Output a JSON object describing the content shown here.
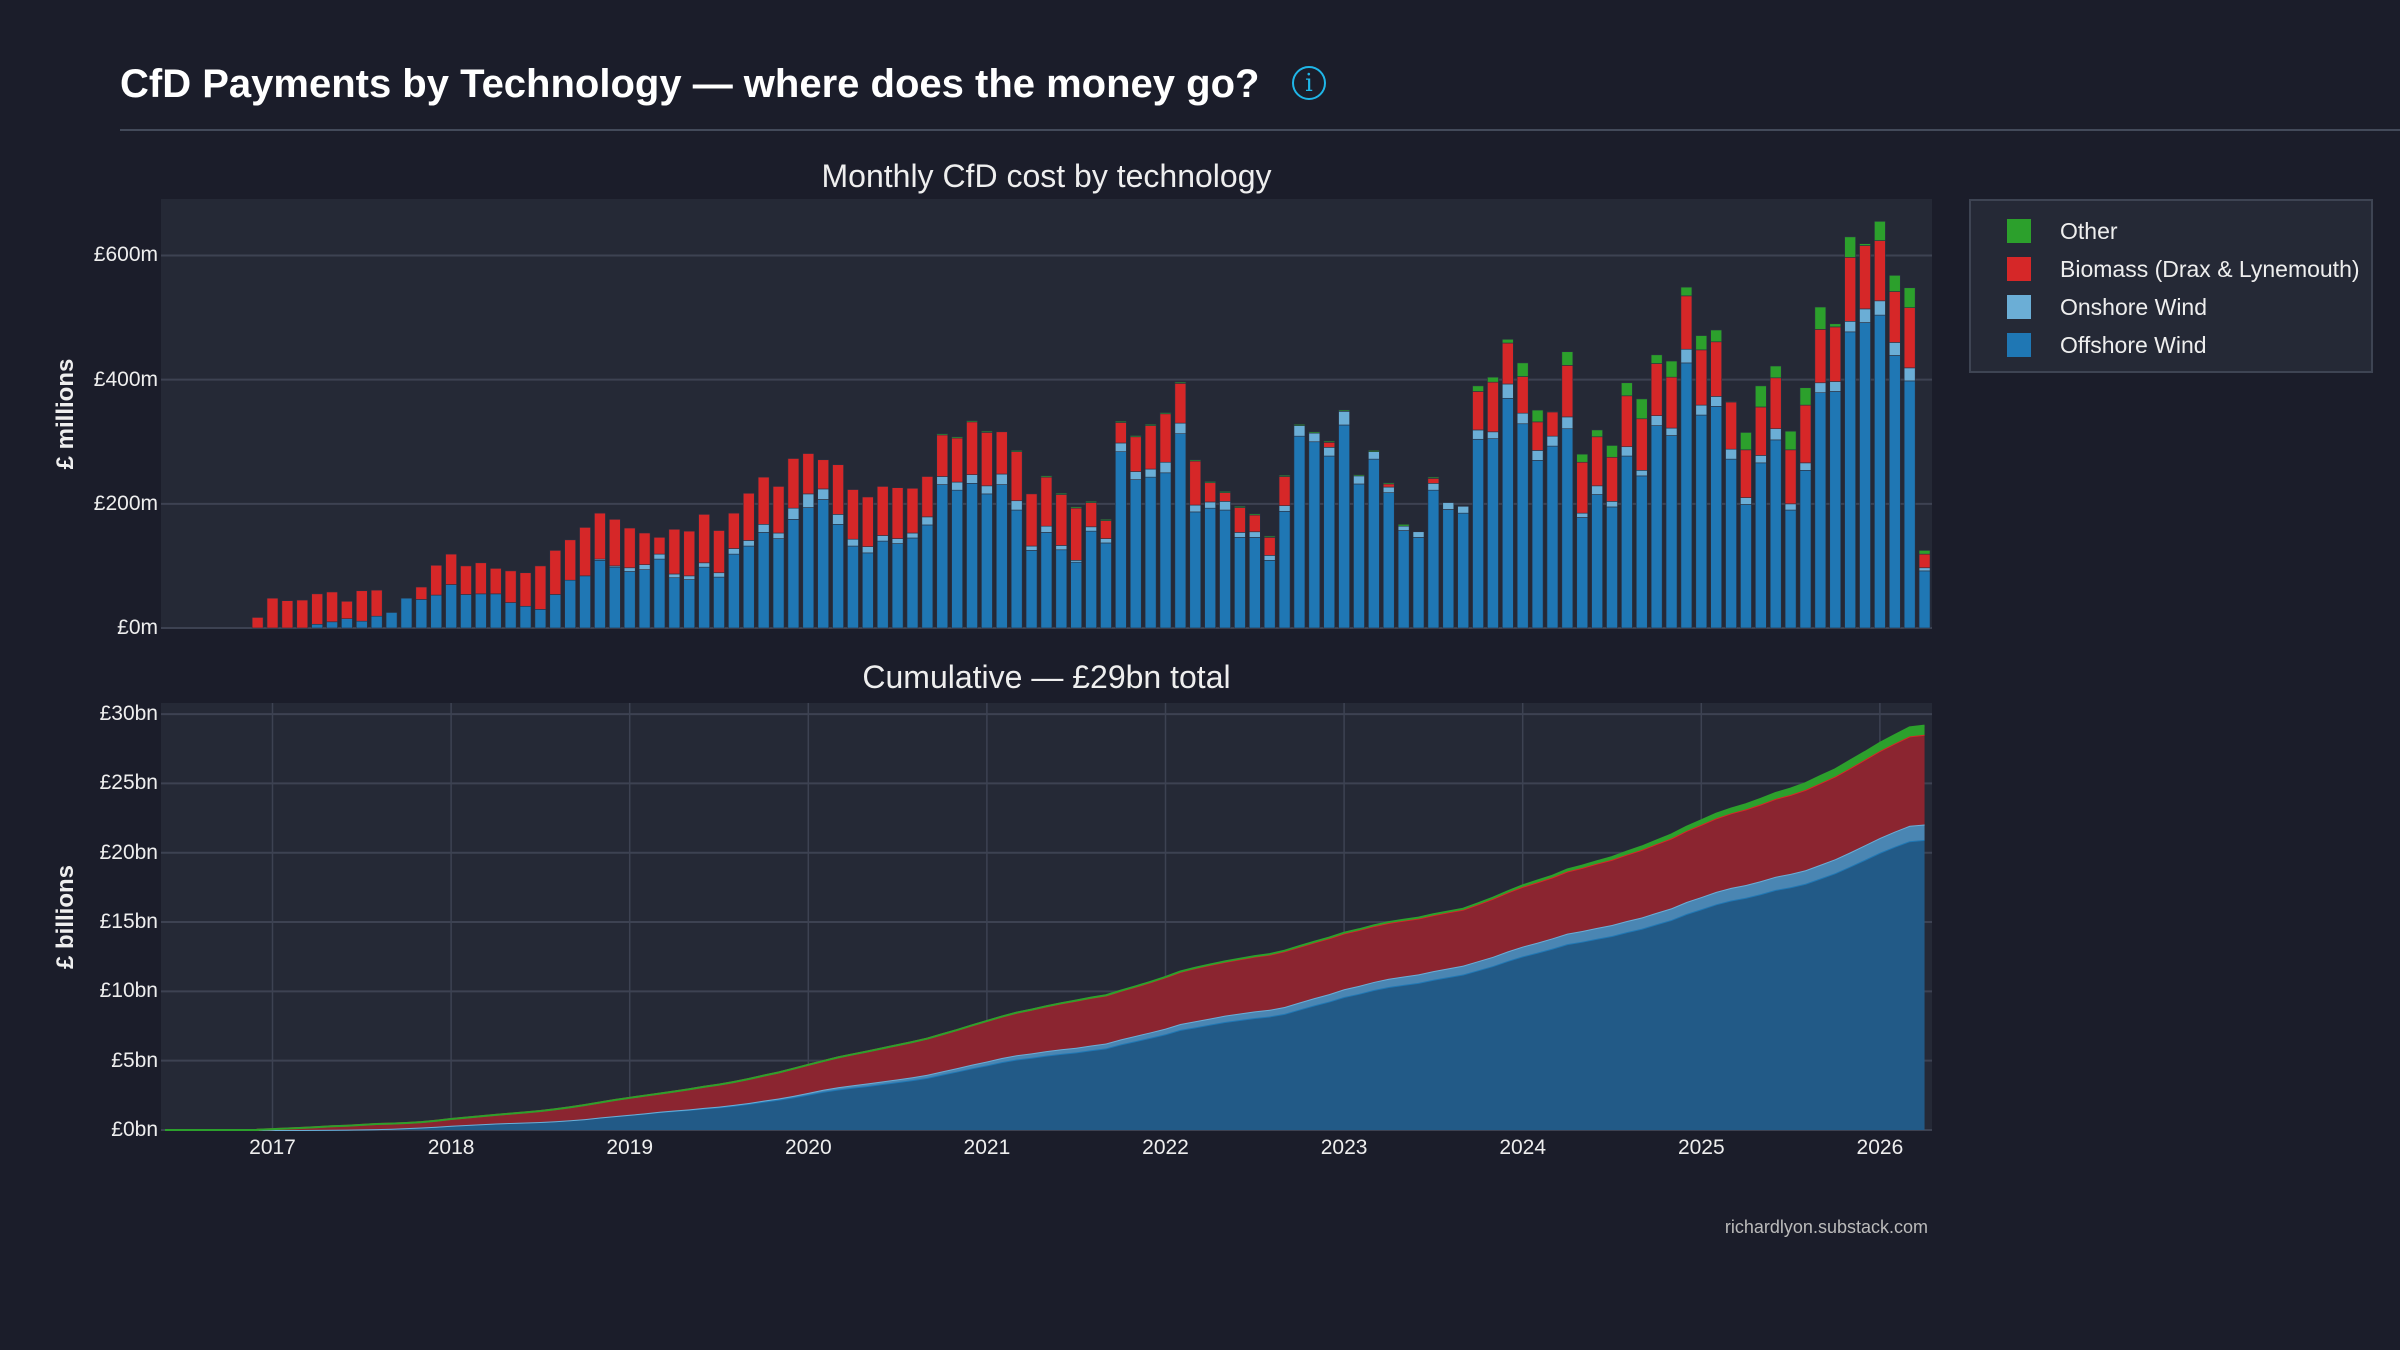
{
  "header": {
    "title": "CfD Payments by Technology — where does the money go?",
    "info_icon": "info-circle-icon",
    "info_glyph": "i"
  },
  "footer": {
    "credit": "richardlyon.substack.com"
  },
  "colors": {
    "background": "#1b1d2a",
    "plot_background": "#252936",
    "offshore": "#1f77b4",
    "onshore": "#6baed6",
    "biomass": "#d62728",
    "other": "#2ca02c",
    "info_accent": "#1fb6e8"
  },
  "legend": {
    "placement": "right-top",
    "items": [
      {
        "label": "Other",
        "color": "#2ca02c"
      },
      {
        "label": "Biomass (Drax & Lynemouth)",
        "color": "#d62728"
      },
      {
        "label": "Onshore Wind",
        "color": "#6baed6"
      },
      {
        "label": "Offshore Wind",
        "color": "#1f77b4"
      }
    ]
  },
  "chart_data": [
    {
      "type": "bar",
      "stacked": true,
      "title": "Monthly CfD cost by technology",
      "ylabel": "£ millions",
      "xlabel": "",
      "ylim": [
        0,
        691
      ],
      "yticks": [
        0,
        200,
        400,
        600
      ],
      "ytick_labels": [
        "£0m",
        "£200m",
        "£400m",
        "£600m"
      ],
      "grid": "horizontal",
      "x": [
        "2016-12",
        "2017-01",
        "2017-02",
        "2017-03",
        "2017-04",
        "2017-05",
        "2017-06",
        "2017-07",
        "2017-08",
        "2017-09",
        "2017-10",
        "2017-11",
        "2017-12",
        "2018-01",
        "2018-02",
        "2018-03",
        "2018-04",
        "2018-05",
        "2018-06",
        "2018-07",
        "2018-08",
        "2018-09",
        "2018-10",
        "2018-11",
        "2018-12",
        "2019-01",
        "2019-02",
        "2019-03",
        "2019-04",
        "2019-05",
        "2019-06",
        "2019-07",
        "2019-08",
        "2019-09",
        "2019-10",
        "2019-11",
        "2019-12",
        "2020-01",
        "2020-02",
        "2020-03",
        "2020-04",
        "2020-05",
        "2020-06",
        "2020-07",
        "2020-08",
        "2020-09",
        "2020-10",
        "2020-11",
        "2020-12",
        "2021-01",
        "2021-02",
        "2021-03",
        "2021-04",
        "2021-05",
        "2021-06",
        "2021-07",
        "2021-08",
        "2021-09",
        "2021-10",
        "2021-11",
        "2021-12",
        "2022-01",
        "2022-02",
        "2022-03",
        "2022-04",
        "2022-05",
        "2022-06",
        "2022-07",
        "2022-08",
        "2022-09",
        "2022-10",
        "2022-11",
        "2022-12",
        "2023-01",
        "2023-02",
        "2023-03",
        "2023-04",
        "2023-05",
        "2023-06",
        "2023-07",
        "2023-08",
        "2023-09",
        "2023-10",
        "2023-11",
        "2023-12",
        "2024-01",
        "2024-02",
        "2024-03",
        "2024-04",
        "2024-05",
        "2024-06",
        "2024-07",
        "2024-08",
        "2024-09",
        "2024-10",
        "2024-11",
        "2024-12",
        "2025-01",
        "2025-02",
        "2025-03",
        "2025-04",
        "2025-05",
        "2025-06",
        "2025-07",
        "2025-08",
        "2025-09",
        "2025-10",
        "2025-11",
        "2025-12",
        "2026-01",
        "2026-02",
        "2026-03",
        "2026-04"
      ],
      "series": [
        {
          "name": "Offshore Wind",
          "color": "#1f77b4",
          "values": [
            0,
            0,
            0,
            0,
            6,
            10,
            15,
            11,
            19,
            25,
            48,
            46,
            53,
            70,
            54,
            55,
            55,
            41,
            35,
            30,
            54,
            77,
            84,
            109,
            98,
            91,
            94,
            111,
            81,
            78,
            98,
            82,
            119,
            132,
            154,
            144,
            175,
            194,
            207,
            167,
            132,
            121,
            140,
            136,
            145,
            166,
            231,
            222,
            233,
            216,
            231,
            190,
            125,
            154,
            126,
            106,
            156,
            137,
            284,
            239,
            243,
            250,
            313,
            187,
            193,
            190,
            146,
            146,
            109,
            188,
            309,
            300,
            277,
            327,
            232,
            272,
            218,
            157,
            146,
            222,
            191,
            185,
            304,
            305,
            370,
            329,
            270,
            293,
            321,
            178,
            215,
            195,
            277,
            245,
            326,
            310,
            427,
            343,
            357,
            272,
            199,
            266,
            303,
            190,
            254,
            379,
            381,
            477,
            492,
            504,
            439,
            398,
            92
          ]
        },
        {
          "name": "Onshore Wind",
          "color": "#6baed6",
          "values": [
            0,
            0,
            0,
            0,
            0,
            0,
            0,
            0,
            0,
            0,
            0,
            0,
            0,
            0,
            0,
            0,
            0,
            0,
            0,
            0,
            0,
            0,
            0,
            2,
            2,
            6,
            8,
            8,
            6,
            6,
            7,
            7,
            9,
            9,
            13,
            9,
            18,
            22,
            17,
            16,
            11,
            10,
            9,
            8,
            8,
            13,
            13,
            13,
            14,
            13,
            17,
            15,
            7,
            10,
            7,
            3,
            7,
            7,
            14,
            13,
            13,
            17,
            17,
            11,
            10,
            14,
            8,
            9,
            8,
            9,
            17,
            14,
            14,
            22,
            13,
            12,
            9,
            7,
            9,
            11,
            11,
            11,
            15,
            11,
            23,
            17,
            16,
            16,
            19,
            7,
            14,
            9,
            15,
            9,
            16,
            12,
            22,
            16,
            16,
            16,
            11,
            12,
            18,
            10,
            12,
            16,
            16,
            17,
            22,
            23,
            21,
            21,
            5
          ]
        },
        {
          "name": "Biomass (Drax & Lynemouth)",
          "color": "#d62728",
          "values": [
            17,
            48,
            44,
            45,
            49,
            48,
            28,
            49,
            42,
            0,
            0,
            20,
            48,
            49,
            46,
            50,
            41,
            51,
            54,
            70,
            71,
            65,
            78,
            74,
            75,
            64,
            51,
            27,
            72,
            72,
            78,
            68,
            57,
            76,
            76,
            75,
            80,
            65,
            47,
            80,
            80,
            80,
            79,
            82,
            72,
            65,
            67,
            71,
            85,
            86,
            68,
            79,
            84,
            79,
            82,
            84,
            39,
            29,
            33,
            56,
            70,
            78,
            64,
            71,
            31,
            14,
            40,
            27,
            29,
            47,
            0,
            0,
            8,
            0,
            0,
            0,
            5,
            0,
            0,
            8,
            0,
            0,
            62,
            80,
            66,
            59,
            46,
            39,
            83,
            82,
            79,
            71,
            82,
            83,
            84,
            82,
            86,
            89,
            88,
            76,
            77,
            78,
            82,
            87,
            93,
            86,
            88,
            103,
            102,
            97,
            82,
            97,
            22
          ]
        },
        {
          "name": "Other",
          "color": "#2ca02c",
          "values": [
            0,
            0,
            0,
            0,
            0,
            0,
            0,
            0,
            0,
            0,
            0,
            0,
            0,
            0,
            0,
            0,
            0,
            0,
            0,
            0,
            0,
            0,
            0,
            0,
            0,
            0,
            0,
            0,
            0,
            0,
            0,
            0,
            0,
            0,
            0,
            0,
            0,
            0,
            0,
            0,
            0,
            0,
            0,
            0,
            0,
            0,
            2,
            2,
            2,
            2,
            0,
            2,
            0,
            2,
            2,
            2,
            2,
            2,
            2,
            2,
            2,
            2,
            2,
            2,
            2,
            2,
            2,
            2,
            2,
            2,
            2,
            2,
            2,
            2,
            2,
            2,
            2,
            3,
            0,
            2,
            0,
            0,
            9,
            8,
            6,
            22,
            19,
            1,
            22,
            13,
            11,
            19,
            21,
            32,
            14,
            26,
            14,
            23,
            19,
            1,
            28,
            34,
            19,
            30,
            28,
            36,
            5,
            33,
            3,
            31,
            26,
            32,
            6
          ]
        }
      ]
    },
    {
      "type": "area",
      "stacked": true,
      "cumulative_of": "monthly series",
      "title": "Cumulative — £29bn total",
      "ylabel": "£ billions",
      "xlabel": "",
      "ylim": [
        0,
        30.8
      ],
      "yticks": [
        0,
        5,
        10,
        15,
        20,
        25,
        30
      ],
      "ytick_labels": [
        "£0bn",
        "£5bn",
        "£10bn",
        "£15bn",
        "£20bn",
        "£25bn",
        "£30bn"
      ],
      "xlim": [
        "2016-05",
        "2026-04"
      ],
      "xticks": [
        "2017",
        "2018",
        "2019",
        "2020",
        "2021",
        "2022",
        "2023",
        "2024",
        "2025",
        "2026"
      ],
      "grid": "both"
    }
  ]
}
